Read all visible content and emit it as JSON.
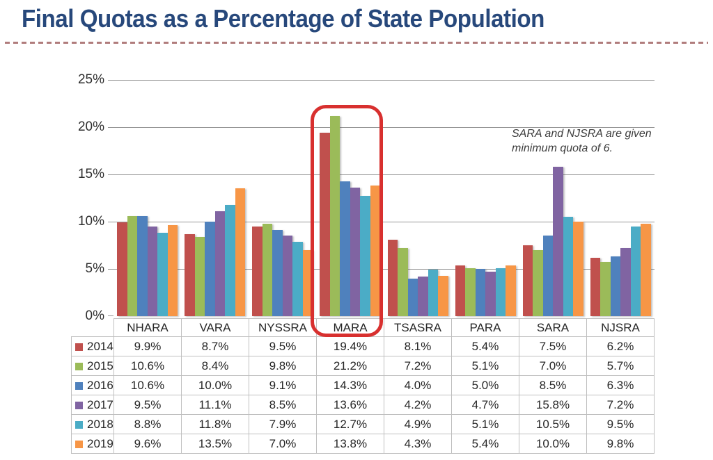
{
  "title": {
    "text": "Final Quotas as a Percentage of State Population"
  },
  "chart_data": {
    "type": "bar",
    "title": "Final Quotas as a Percentage of State Population",
    "categories": [
      "NHARA",
      "VARA",
      "NYSSRA",
      "MARA",
      "TSASRA",
      "PARA",
      "SARA",
      "NJSRA"
    ],
    "series": [
      {
        "name": "2014",
        "color": "#C0504D",
        "values": [
          9.9,
          8.7,
          9.5,
          19.4,
          8.1,
          5.4,
          7.5,
          6.2
        ]
      },
      {
        "name": "2015",
        "color": "#9BBB59",
        "values": [
          10.6,
          8.4,
          9.8,
          21.2,
          7.2,
          5.1,
          7.0,
          5.7
        ]
      },
      {
        "name": "2016",
        "color": "#4F81BD",
        "values": [
          10.6,
          10.0,
          9.1,
          14.3,
          4.0,
          5.0,
          8.5,
          6.3
        ]
      },
      {
        "name": "2017",
        "color": "#8064A2",
        "values": [
          9.5,
          11.1,
          8.5,
          13.6,
          4.2,
          4.7,
          15.8,
          7.2
        ]
      },
      {
        "name": "2018",
        "color": "#4BACC6",
        "values": [
          8.8,
          11.8,
          7.9,
          12.7,
          4.9,
          5.1,
          10.5,
          9.5
        ]
      },
      {
        "name": "2019",
        "color": "#F79646",
        "values": [
          9.6,
          13.5,
          7.0,
          13.8,
          4.3,
          5.4,
          10.0,
          9.8
        ]
      }
    ],
    "ylim": [
      0,
      25
    ],
    "y_ticks": [
      "0%",
      "5%",
      "10%",
      "15%",
      "20%",
      "25%"
    ],
    "grid": true,
    "legend_position": "table-left-column",
    "annotation": "SARA and NJSRA are given\nminimum quota of 6.",
    "highlight_category": "MARA",
    "highlight_color": "#d8302f"
  },
  "table": {
    "columns": [
      "NHARA",
      "VARA",
      "NYSSRA",
      "MARA",
      "TSASRA",
      "PARA",
      "SARA",
      "NJSRA"
    ],
    "rows": [
      {
        "year": "2014",
        "marker_color": "#C0504D",
        "cells": [
          "9.9%",
          "8.7%",
          "9.5%",
          "19.4%",
          "8.1%",
          "5.4%",
          "7.5%",
          "6.2%"
        ]
      },
      {
        "year": "2015",
        "marker_color": "#9BBB59",
        "cells": [
          "10.6%",
          "8.4%",
          "9.8%",
          "21.2%",
          "7.2%",
          "5.1%",
          "7.0%",
          "5.7%"
        ]
      },
      {
        "year": "2016",
        "marker_color": "#4F81BD",
        "cells": [
          "10.6%",
          "10.0%",
          "9.1%",
          "14.3%",
          "4.0%",
          "5.0%",
          "8.5%",
          "6.3%"
        ]
      },
      {
        "year": "2017",
        "marker_color": "#8064A2",
        "cells": [
          "9.5%",
          "11.1%",
          "8.5%",
          "13.6%",
          "4.2%",
          "4.7%",
          "15.8%",
          "7.2%"
        ]
      },
      {
        "year": "2018",
        "marker_color": "#4BACC6",
        "cells": [
          "8.8%",
          "11.8%",
          "7.9%",
          "12.7%",
          "4.9%",
          "5.1%",
          "10.5%",
          "9.5%"
        ]
      },
      {
        "year": "2019",
        "marker_color": "#F79646",
        "cells": [
          "9.6%",
          "13.5%",
          "7.0%",
          "13.8%",
          "4.3%",
          "5.4%",
          "10.0%",
          "9.8%"
        ]
      }
    ]
  },
  "colors": {
    "title": "#27487B",
    "divider": "#b07c7c",
    "gridline": "#969696",
    "table_border": "#bfbfbf",
    "highlight": "#d8302f"
  }
}
